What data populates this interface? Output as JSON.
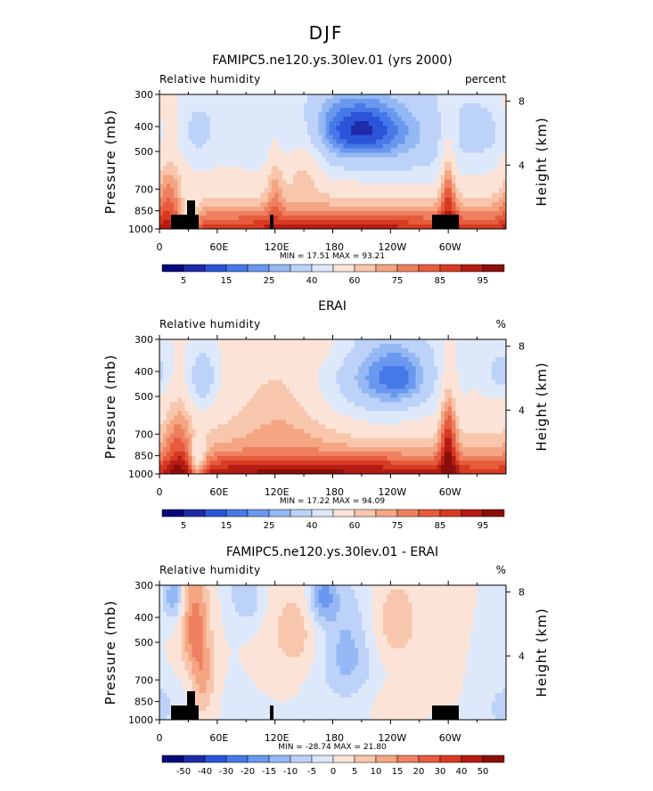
{
  "figure": {
    "title": "DJF"
  },
  "chart_data": [
    {
      "type": "heatmap",
      "title": "FAMIPC5.ne120.ys.30lev.01 (yrs 2000)",
      "left_label": "Relative humidity",
      "right_label": "percent",
      "ylabel": "Pressure (mb)",
      "y2label": "Height (km)",
      "xticks": [
        "0",
        "60E",
        "120E",
        "180",
        "120W",
        "60W"
      ],
      "xtick_lon": [
        0,
        60,
        120,
        180,
        240,
        300
      ],
      "xlim": [
        0,
        360
      ],
      "yticks": [
        "300",
        "400",
        "500",
        "700",
        "850",
        "1000"
      ],
      "ytick_p": [
        300,
        400,
        500,
        700,
        850,
        1000
      ],
      "ylim": [
        1000,
        300
      ],
      "y2ticks": [
        "8",
        "4"
      ],
      "y2tick_km": [
        8,
        4
      ],
      "minmax_text": "MIN =   17.51   MAX =   93.21",
      "min": 17.51,
      "max": 93.21,
      "colorbar": {
        "labels": [
          "5",
          "15",
          "25",
          "40",
          "60",
          "75",
          "85",
          "95"
        ],
        "colors": [
          "#05087a",
          "#1f2ba8",
          "#2a55d8",
          "#4678e8",
          "#6a98ee",
          "#94b8f4",
          "#bcd2f8",
          "#dde8fb",
          "#fbe4d7",
          "#f8c6ac",
          "#f4a582",
          "#ee8060",
          "#e65c3d",
          "#d63a22",
          "#b41c14",
          "#8a0f0a"
        ]
      }
    },
    {
      "type": "heatmap",
      "title": "ERAI",
      "left_label": "Relative humidity",
      "right_label": "%",
      "ylabel": "Pressure (mb)",
      "y2label": "Height (km)",
      "xticks": [
        "0",
        "60E",
        "120E",
        "180",
        "120W",
        "60W"
      ],
      "xtick_lon": [
        0,
        60,
        120,
        180,
        240,
        300
      ],
      "xlim": [
        0,
        360
      ],
      "yticks": [
        "300",
        "400",
        "500",
        "700",
        "850",
        "1000"
      ],
      "ytick_p": [
        300,
        400,
        500,
        700,
        850,
        1000
      ],
      "ylim": [
        1000,
        300
      ],
      "y2ticks": [
        "8",
        "4"
      ],
      "y2tick_km": [
        8,
        4
      ],
      "minmax_text": "MIN =   17.22   MAX =   94.09",
      "min": 17.22,
      "max": 94.09,
      "colorbar": {
        "labels": [
          "5",
          "15",
          "25",
          "40",
          "60",
          "75",
          "85",
          "95"
        ],
        "colors": [
          "#05087a",
          "#1f2ba8",
          "#2a55d8",
          "#4678e8",
          "#6a98ee",
          "#94b8f4",
          "#bcd2f8",
          "#dde8fb",
          "#fbe4d7",
          "#f8c6ac",
          "#f4a582",
          "#ee8060",
          "#e65c3d",
          "#d63a22",
          "#b41c14",
          "#8a0f0a"
        ]
      }
    },
    {
      "type": "heatmap",
      "title": "FAMIPC5.ne120.ys.30lev.01 - ERAI",
      "left_label": "Relative humidity",
      "right_label": "%",
      "ylabel": "Pressure (mb)",
      "y2label": "Height (km)",
      "xticks": [
        "0",
        "60E",
        "120E",
        "180",
        "120W",
        "60W"
      ],
      "xtick_lon": [
        0,
        60,
        120,
        180,
        240,
        300
      ],
      "xlim": [
        0,
        360
      ],
      "yticks": [
        "300",
        "400",
        "500",
        "700",
        "850",
        "1000"
      ],
      "ytick_p": [
        300,
        400,
        500,
        700,
        850,
        1000
      ],
      "ylim": [
        1000,
        300
      ],
      "y2ticks": [
        "8",
        "4"
      ],
      "y2tick_km": [
        8,
        4
      ],
      "minmax_text": "MIN = -28.74   MAX =   21.80",
      "min": -28.74,
      "max": 21.8,
      "colorbar": {
        "labels": [
          "-50",
          "-40",
          "-30",
          "-20",
          "-15",
          "-10",
          "-5",
          "0",
          "5",
          "10",
          "15",
          "20",
          "30",
          "40",
          "50"
        ],
        "colors": [
          "#05087a",
          "#1f2ba8",
          "#2a55d8",
          "#4678e8",
          "#6a98ee",
          "#94b8f4",
          "#bcd2f8",
          "#dde8fb",
          "#fbe4d7",
          "#f8c6ac",
          "#f4a582",
          "#ee8060",
          "#e65c3d",
          "#d63a22",
          "#b41c14",
          "#8a0f0a"
        ]
      }
    }
  ]
}
